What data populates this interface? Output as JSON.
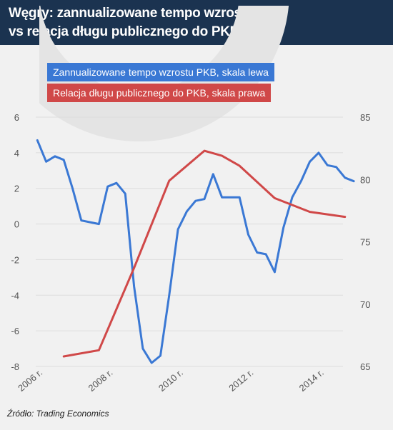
{
  "header": {
    "title": "Węgry: zannualizowane tempo wzrostu PKB\nvs relacja długu publicznego do PKB",
    "bg_color": "#1b3350"
  },
  "legend": {
    "blue_label": "Zannualizowane tempo wzrostu PKB, skala lewa",
    "red_label": "Relacja długu publicznego do PKB, skala prawa"
  },
  "footer": {
    "source": "Źródło: Trading Economics"
  },
  "chart_data": {
    "type": "line",
    "title": "Węgry: zannualizowane tempo wzrostu PKB vs relacja długu publicznego do PKB",
    "x_tick_labels": [
      "2006 r.",
      "2008 r.",
      "2010 r.",
      "2012 r.",
      "2014 r."
    ],
    "x_ticks": [
      2006,
      2008,
      2010,
      2012,
      2014
    ],
    "xlim": [
      2005.75,
      2015.1
    ],
    "y_left": {
      "ticks": [
        6,
        4,
        2,
        0,
        -2,
        -4,
        -6,
        -8
      ],
      "ylim": [
        -8,
        6
      ]
    },
    "y_right": {
      "ticks": [
        85,
        80,
        75,
        70,
        65
      ],
      "ylim": [
        65,
        85
      ]
    },
    "grid": true,
    "legend_position": "top-left",
    "series": [
      {
        "name": "Zannualizowane tempo wzrostu PKB, skala lewa",
        "axis": "left",
        "color": "#3a78d4",
        "x": [
          2006.0,
          2006.25,
          2006.5,
          2006.75,
          2007.0,
          2007.25,
          2007.75,
          2008.0,
          2008.25,
          2008.5,
          2008.75,
          2009.0,
          2009.25,
          2009.5,
          2009.75,
          2010.0,
          2010.25,
          2010.5,
          2010.75,
          2011.0,
          2011.25,
          2011.5,
          2011.75,
          2012.0,
          2012.25,
          2012.5,
          2012.75,
          2013.0,
          2013.25,
          2013.5,
          2013.75,
          2014.0,
          2014.25,
          2014.5,
          2014.75,
          2015.0
        ],
        "values": [
          4.7,
          3.5,
          3.8,
          3.6,
          2.0,
          0.2,
          0.0,
          2.1,
          2.3,
          1.7,
          -3.5,
          -7.0,
          -7.8,
          -7.4,
          -4.0,
          -0.3,
          0.7,
          1.3,
          1.4,
          2.8,
          1.5,
          1.5,
          1.5,
          -0.6,
          -1.6,
          -1.7,
          -2.7,
          -0.2,
          1.5,
          2.4,
          3.5,
          4.0,
          3.3,
          3.2,
          2.6,
          2.4
        ]
      },
      {
        "name": "Relacja długu publicznego do PKB, skala prawa",
        "axis": "right",
        "color": "#d04848",
        "x": [
          2006.75,
          2007.75,
          2008.75,
          2009.75,
          2010.75,
          2011.25,
          2011.75,
          2012.75,
          2013.75,
          2014.75
        ],
        "values": [
          65.8,
          66.3,
          72.9,
          79.9,
          82.3,
          81.9,
          81.1,
          78.5,
          77.4,
          77.0
        ]
      }
    ]
  }
}
